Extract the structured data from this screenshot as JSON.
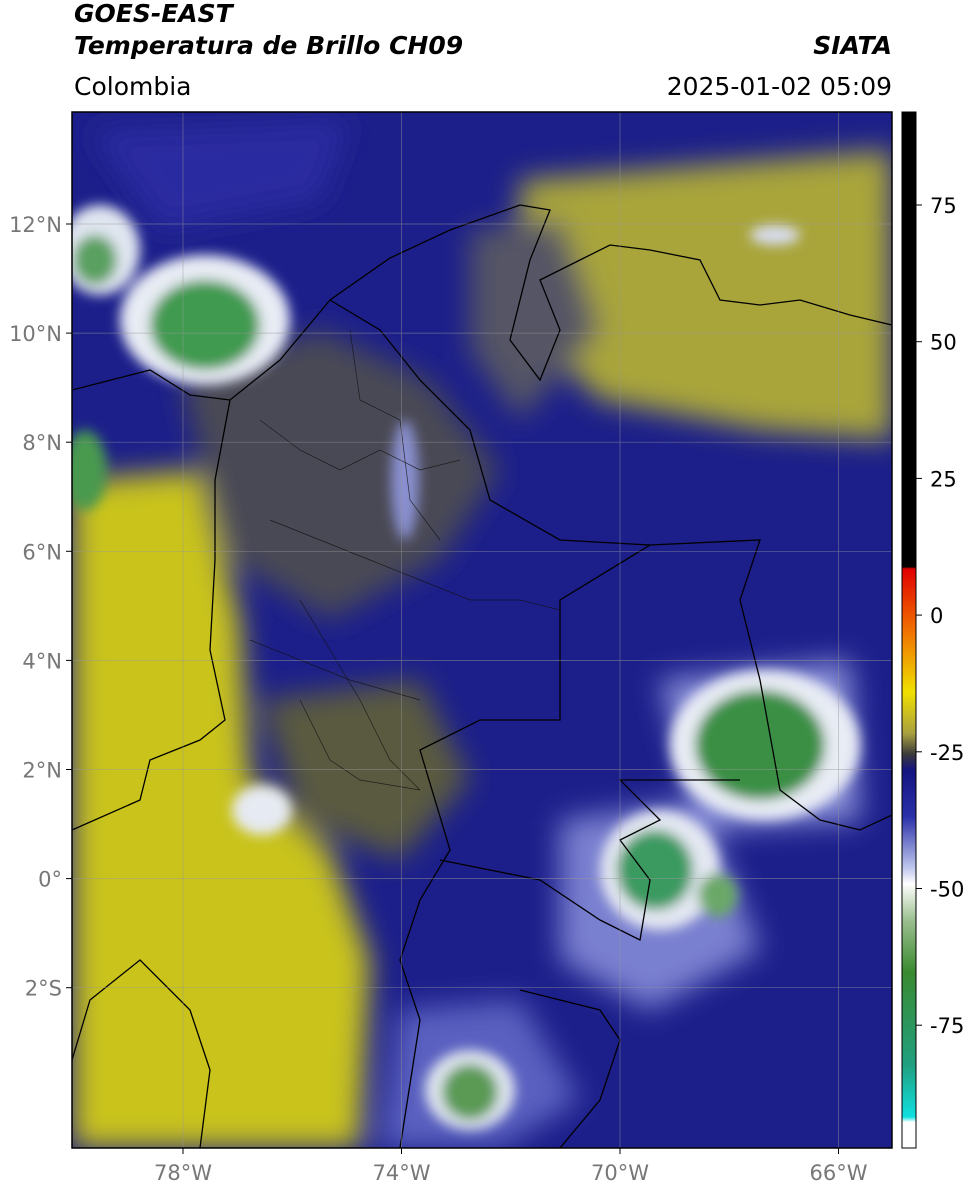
{
  "header": {
    "title": "GOES-EAST",
    "subtitle": "Temperatura de Brillo CH09",
    "region": "Colombia",
    "source": "SIATA",
    "datetime": "2025-01-02 05:09"
  },
  "map": {
    "lat_ticks": [
      "12°N",
      "10°N",
      "8°N",
      "6°N",
      "4°N",
      "2°N",
      "0°",
      "2°S"
    ],
    "lon_ticks": [
      "78°W",
      "74°W",
      "70°W",
      "66°W"
    ]
  },
  "colorbar": {
    "ticks": [
      75,
      50,
      25,
      0,
      -25,
      -50,
      -75
    ]
  }
}
